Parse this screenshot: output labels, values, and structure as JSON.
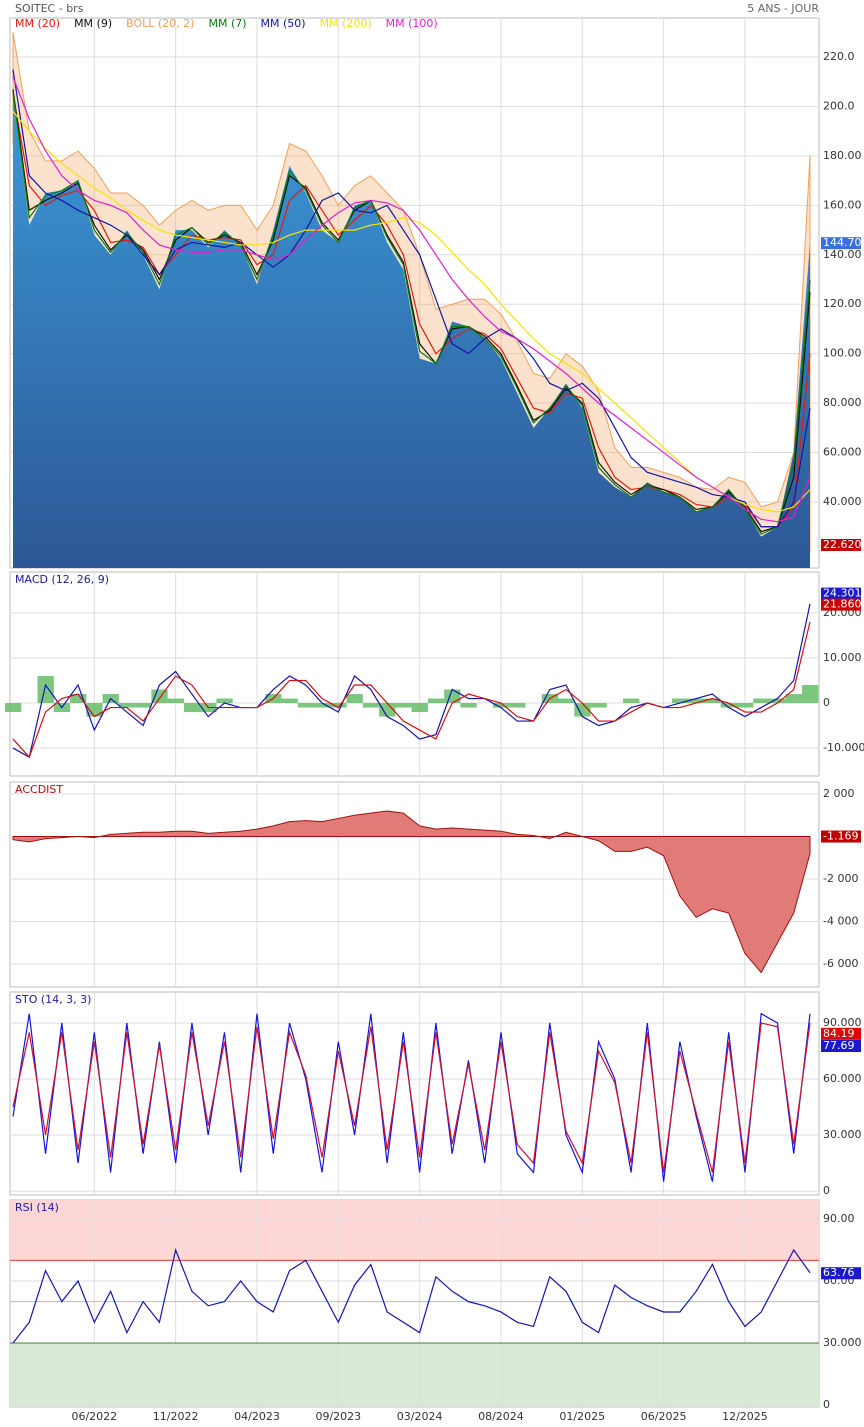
{
  "chart_data": [
    {
      "type": "area",
      "title": "SOITEC - brs",
      "subtitle": "5 ANS - JOUR",
      "values": [
        205,
        152,
        165,
        166,
        170,
        148,
        140,
        150,
        140,
        126,
        150,
        150,
        143,
        150,
        144,
        128,
        150,
        176,
        165,
        150,
        145,
        160,
        162,
        145,
        134,
        98,
        96,
        113,
        111,
        106,
        98,
        84,
        70,
        78,
        88,
        78,
        52,
        46,
        42,
        48,
        44,
        42,
        36,
        38,
        45,
        37,
        26,
        30,
        60,
        144.7
      ],
      "fill": [
        "#3b9ad8",
        "#2d5796"
      ],
      "series": [
        {
          "name": "MM (20)",
          "color": "#e8190c",
          "values": [
            205,
            168,
            160,
            164,
            166,
            158,
            145,
            146,
            143,
            132,
            140,
            148,
            146,
            147,
            146,
            136,
            140,
            162,
            168,
            158,
            148,
            154,
            160,
            152,
            140,
            112,
            100,
            106,
            110,
            108,
            102,
            90,
            78,
            76,
            84,
            82,
            62,
            50,
            45,
            46,
            45,
            43,
            39,
            38,
            42,
            39,
            30,
            30,
            38,
            100
          ]
        },
        {
          "name": "MM (9)",
          "color": "#111111",
          "values": [
            207,
            158,
            162,
            165,
            169,
            152,
            142,
            148,
            142,
            130,
            146,
            151,
            145,
            148,
            145,
            132,
            146,
            172,
            167,
            153,
            146,
            158,
            162,
            148,
            137,
            104,
            96,
            110,
            111,
            107,
            100,
            87,
            73,
            77,
            86,
            80,
            56,
            48,
            43,
            47,
            45,
            42,
            37,
            38,
            44,
            38,
            28,
            30,
            50,
            125
          ]
        },
        {
          "name": "BOLL (20, 2)",
          "color": "#f2a05a",
          "upper": [
            230,
            190,
            178,
            178,
            182,
            175,
            165,
            165,
            160,
            152,
            158,
            162,
            158,
            160,
            160,
            150,
            160,
            185,
            182,
            172,
            160,
            168,
            172,
            165,
            158,
            140,
            118,
            120,
            122,
            122,
            116,
            105,
            92,
            90,
            100,
            95,
            85,
            62,
            54,
            54,
            52,
            50,
            46,
            45,
            50,
            48,
            38,
            40,
            60,
            180
          ],
          "lower": [
            185,
            146,
            142,
            150,
            150,
            141,
            125,
            127,
            126,
            112,
            122,
            134,
            134,
            134,
            132,
            122,
            120,
            139,
            154,
            144,
            136,
            140,
            148,
            139,
            122,
            84,
            82,
            92,
            98,
            94,
            88,
            75,
            64,
            62,
            68,
            69,
            39,
            38,
            36,
            38,
            38,
            36,
            32,
            31,
            34,
            30,
            22,
            20,
            16,
            20
          ]
        },
        {
          "name": "MM (7)",
          "color": "#0a7a0a",
          "values": [
            206,
            155,
            164,
            166,
            170,
            150,
            141,
            149,
            141,
            128,
            148,
            151,
            144,
            149,
            144,
            130,
            148,
            174,
            166,
            152,
            145,
            159,
            162,
            147,
            136,
            101,
            96,
            111,
            111,
            106,
            99,
            86,
            72,
            78,
            87,
            79,
            54,
            47,
            42,
            47,
            44,
            42,
            36,
            38,
            45,
            37,
            27,
            30,
            55,
            130
          ]
        },
        {
          "name": "MM (50)",
          "color": "#1515a8",
          "values": [
            215,
            172,
            165,
            162,
            158,
            155,
            152,
            148,
            140,
            132,
            142,
            145,
            144,
            143,
            145,
            140,
            135,
            140,
            150,
            162,
            165,
            158,
            157,
            160,
            150,
            140,
            122,
            104,
            100,
            106,
            110,
            106,
            98,
            88,
            85,
            88,
            82,
            70,
            58,
            52,
            50,
            48,
            46,
            43,
            42,
            40,
            30,
            30,
            40,
            78
          ]
        },
        {
          "name": "MM (200)",
          "color": "#f5e400",
          "values": [
            198,
            190,
            183,
            177,
            172,
            167,
            163,
            158,
            154,
            150,
            148,
            147,
            146,
            145,
            144,
            144,
            145,
            148,
            150,
            150,
            150,
            150,
            152,
            153,
            155,
            153,
            148,
            141,
            134,
            128,
            120,
            113,
            106,
            100,
            96,
            92,
            86,
            80,
            74,
            68,
            62,
            56,
            50,
            46,
            42,
            39,
            37,
            36,
            38,
            45
          ]
        },
        {
          "name": "MM (100)",
          "color": "#e020d0",
          "values": [
            212,
            195,
            182,
            172,
            166,
            162,
            160,
            157,
            150,
            144,
            142,
            141,
            141,
            142,
            142,
            140,
            138,
            140,
            146,
            152,
            157,
            161,
            162,
            161,
            158,
            150,
            140,
            130,
            122,
            115,
            109,
            106,
            102,
            97,
            92,
            86,
            80,
            75,
            70,
            65,
            60,
            55,
            50,
            46,
            42,
            37,
            33,
            32,
            34,
            50
          ]
        }
      ],
      "ylim": [
        13.3,
        235.8
      ],
      "yticks": [
        {
          "value": 40,
          "label": "40.000"
        },
        {
          "value": 60,
          "label": "60.000"
        },
        {
          "value": 80,
          "label": "80.000"
        },
        {
          "value": 100,
          "label": "100.00"
        },
        {
          "value": 120,
          "label": "120.00"
        },
        {
          "value": 140,
          "label": "140.00"
        },
        {
          "value": 160,
          "label": "160.00"
        },
        {
          "value": 180,
          "label": "180.00"
        },
        {
          "value": 200,
          "label": "200.0"
        },
        {
          "value": 220,
          "label": "220.0"
        }
      ],
      "badges": [
        {
          "value": 144.7,
          "label": "144.70",
          "color": "#3a6fe0"
        },
        {
          "value": 22.62,
          "label": "22.620",
          "color": "#c00000"
        }
      ]
    },
    {
      "type": "line",
      "title": "MACD (12, 26, 9)",
      "title_color": "#1a1aa0",
      "series": [
        {
          "color": "#1515b0",
          "values": [
            -10,
            -12,
            4,
            -1,
            4,
            -6,
            1,
            -2,
            -5,
            4,
            7,
            2,
            -3,
            0,
            -1,
            -1,
            3,
            6,
            4,
            0,
            -2,
            6,
            3,
            -3,
            -5,
            -8,
            -7,
            3,
            1,
            1,
            -1,
            -4,
            -4,
            3,
            4,
            -3,
            -5,
            -4,
            -1,
            0,
            -1,
            0,
            1,
            2,
            -1,
            -3,
            -1,
            1,
            5,
            22
          ]
        },
        {
          "color": "#d01010",
          "values": [
            -8,
            -12,
            -2,
            1,
            2,
            -3,
            -1,
            -1,
            -4,
            1,
            6,
            4,
            -1,
            -1,
            -1,
            -1,
            1,
            5,
            5,
            1,
            -1,
            4,
            4,
            0,
            -4,
            -6,
            -8,
            0,
            2,
            1,
            0,
            -3,
            -4,
            1,
            3,
            0,
            -4,
            -4,
            -2,
            0,
            -1,
            -1,
            0,
            1,
            0,
            -2,
            -2,
            0,
            3,
            18
          ]
        }
      ],
      "histogram": {
        "color": "#5cb85c",
        "values": [
          -2,
          0,
          6,
          -2,
          2,
          -3,
          2,
          -1,
          -1,
          3,
          1,
          -2,
          -2,
          1,
          0,
          0,
          2,
          1,
          -1,
          -1,
          -1,
          2,
          -1,
          -3,
          -1,
          -2,
          1,
          3,
          -1,
          0,
          -1,
          -1,
          0,
          2,
          1,
          -3,
          -1,
          0,
          1,
          0,
          0,
          1,
          1,
          1,
          -1,
          -1,
          1,
          1,
          2,
          4
        ]
      },
      "ylim": [
        -16.2,
        29.1
      ],
      "yticks": [
        {
          "value": 20,
          "label": "20.000"
        },
        {
          "value": 10,
          "label": "10.000"
        },
        0,
        {
          "value": -10,
          "label": "-10.000"
        }
      ],
      "badges": [
        {
          "value": 24.301,
          "color": "#1a1acc"
        },
        {
          "value": 21.86,
          "label": "21.860",
          "color": "#d00000"
        }
      ]
    },
    {
      "type": "area",
      "title": "ACCDIST",
      "title_color": "#b01010",
      "values": [
        -150,
        -250,
        -100,
        -50,
        0,
        -50,
        100,
        150,
        200,
        200,
        250,
        250,
        150,
        200,
        250,
        350,
        500,
        700,
        750,
        700,
        850,
        1000,
        1100,
        1200,
        1100,
        500,
        350,
        400,
        350,
        300,
        250,
        100,
        50,
        -100,
        200,
        0,
        -200,
        -700,
        -700,
        -500,
        -900,
        -2800,
        -3800,
        -3400,
        -3600,
        -5500,
        -6400,
        -5000,
        -3600,
        -800
      ],
      "fill": [
        "#e07b78",
        "#e07b78"
      ],
      "color": "#a01010",
      "ylim": [
        -7082,
        2565
      ],
      "yticks": [
        {
          "value": 2000,
          "label": "2 000"
        },
        {
          "value": -2000,
          "label": "-2 000"
        },
        {
          "value": -4000,
          "label": "-4 000"
        },
        {
          "value": -6000,
          "label": "-6 000"
        }
      ],
      "badges": [
        {
          "value": -1.169,
          "color": "#c00000"
        }
      ]
    },
    {
      "type": "line",
      "title": "STO (14, 3, 3)",
      "title_color": "#1a1aa0",
      "series": [
        {
          "color": "#1515e0",
          "values": [
            40,
            95,
            20,
            90,
            15,
            85,
            10,
            90,
            20,
            80,
            15,
            90,
            30,
            85,
            10,
            95,
            20,
            90,
            60,
            10,
            80,
            30,
            95,
            15,
            85,
            10,
            90,
            20,
            70,
            15,
            85,
            20,
            10,
            90,
            30,
            10,
            80,
            60,
            10,
            90,
            5,
            80,
            40,
            5,
            85,
            10,
            95,
            90,
            20,
            95
          ]
        },
        {
          "color": "#d01030",
          "values": [
            45,
            85,
            30,
            85,
            22,
            80,
            18,
            85,
            25,
            78,
            22,
            85,
            35,
            80,
            18,
            88,
            28,
            85,
            62,
            18,
            75,
            35,
            88,
            22,
            80,
            18,
            85,
            25,
            68,
            22,
            80,
            25,
            15,
            85,
            32,
            15,
            75,
            58,
            15,
            85,
            10,
            75,
            42,
            10,
            80,
            15,
            90,
            88,
            25,
            90
          ]
        }
      ],
      "ylim": [
        -2.1,
        106.6
      ],
      "yticks": [
        0,
        {
          "value": 30,
          "label": "30.000"
        },
        {
          "value": 60,
          "label": "60.000"
        },
        {
          "value": 90,
          "label": "90.000"
        }
      ],
      "badges": [
        {
          "value": 84.19,
          "color": "#e00000"
        },
        {
          "value": 77.69,
          "color": "#1a1acc"
        }
      ]
    },
    {
      "type": "line",
      "title": "RSI (14)",
      "title_color": "#1a1aa0",
      "categories": [
        null,
        null,
        null,
        null,
        null,
        "06/2022",
        null,
        null,
        null,
        null,
        "11/2022",
        null,
        null,
        null,
        null,
        "04/2023",
        null,
        null,
        null,
        null,
        "09/2023",
        null,
        null,
        null,
        null,
        "03/2024",
        null,
        null,
        null,
        null,
        "08/2024",
        null,
        null,
        null,
        null,
        "01/2025",
        null,
        null,
        null,
        null,
        "06/2025",
        null,
        null,
        null,
        null,
        "12/2025",
        null,
        null,
        null,
        null
      ],
      "series": [
        {
          "color": "#1515b0",
          "values": [
            30,
            40,
            65,
            50,
            60,
            40,
            55,
            35,
            50,
            40,
            75,
            55,
            48,
            50,
            60,
            50,
            45,
            65,
            70,
            55,
            40,
            58,
            68,
            45,
            40,
            35,
            62,
            55,
            50,
            48,
            45,
            40,
            38,
            62,
            55,
            40,
            35,
            58,
            52,
            48,
            45,
            45,
            55,
            68,
            50,
            38,
            45,
            60,
            75,
            64
          ]
        }
      ],
      "overbought": 70,
      "oversold": 30,
      "midline": 50,
      "ylim": [
        -1,
        99.2
      ],
      "yticks": [
        {
          "value": 90,
          "label": "90.00"
        },
        {
          "value": 60,
          "label": "60.00"
        },
        {
          "value": 30,
          "label": "30.000"
        },
        0
      ],
      "badges": [
        {
          "value": 63.76,
          "color": "#1a1acc"
        }
      ]
    }
  ]
}
